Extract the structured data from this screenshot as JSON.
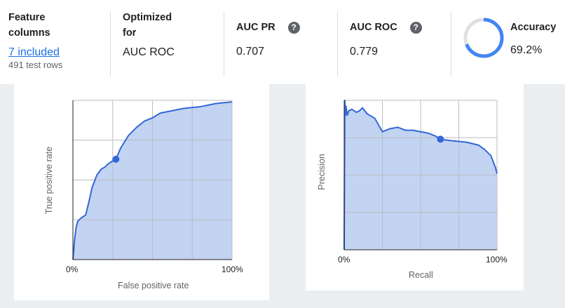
{
  "metrics": {
    "feature": {
      "label_line1": "Feature",
      "label_line2": "columns",
      "link": "7 included",
      "sub": "491 test rows"
    },
    "optimized": {
      "label_line1": "Optimized",
      "label_line2": "for",
      "value": "AUC ROC"
    },
    "auc_pr": {
      "label": "AUC PR",
      "value": "0.707"
    },
    "auc_roc": {
      "label": "AUC ROC",
      "value": "0.779"
    },
    "accuracy": {
      "label": "Accuracy",
      "value": "69.2%",
      "fraction": 0.692
    }
  },
  "roc_chart": {
    "xlabel": "False positive rate",
    "ylabel": "True positive rate",
    "xticks": [
      "0%",
      "100%"
    ]
  },
  "pr_chart": {
    "xlabel": "Recall",
    "ylabel": "Precision",
    "xticks": [
      "0%",
      "100%"
    ]
  },
  "chart_data": [
    {
      "type": "area",
      "xlabel": "False positive rate",
      "ylabel": "True positive rate",
      "xlim": [
        0,
        1
      ],
      "ylim": [
        0,
        1
      ],
      "grid": true,
      "x": [
        0,
        0.005,
        0.01,
        0.02,
        0.03,
        0.05,
        0.08,
        0.1,
        0.12,
        0.15,
        0.18,
        0.2,
        0.22,
        0.25,
        0.27,
        0.3,
        0.35,
        0.4,
        0.45,
        0.5,
        0.55,
        0.6,
        0.7,
        0.8,
        0.9,
        1.0
      ],
      "y": [
        0,
        0.05,
        0.12,
        0.2,
        0.24,
        0.26,
        0.28,
        0.36,
        0.45,
        0.53,
        0.57,
        0.58,
        0.6,
        0.62,
        0.63,
        0.7,
        0.78,
        0.83,
        0.87,
        0.89,
        0.92,
        0.93,
        0.95,
        0.96,
        0.98,
        0.99
      ],
      "highlight": {
        "x": 0.27,
        "y": 0.63
      },
      "xticks": [
        "0%",
        "100%"
      ]
    },
    {
      "type": "area",
      "xlabel": "Recall",
      "ylabel": "Precision",
      "xlim": [
        0,
        1
      ],
      "ylim": [
        0,
        1
      ],
      "grid": true,
      "x": [
        0,
        0.004,
        0.008,
        0.012,
        0.02,
        0.03,
        0.05,
        0.08,
        0.1,
        0.12,
        0.15,
        0.2,
        0.25,
        0.3,
        0.35,
        0.4,
        0.45,
        0.5,
        0.55,
        0.6,
        0.63,
        0.7,
        0.8,
        0.88,
        0.92,
        0.96,
        0.99,
        1.0
      ],
      "y": [
        0,
        1.0,
        0.9,
        0.96,
        0.9,
        0.93,
        0.94,
        0.92,
        0.93,
        0.95,
        0.91,
        0.88,
        0.79,
        0.81,
        0.82,
        0.8,
        0.8,
        0.79,
        0.78,
        0.76,
        0.74,
        0.73,
        0.72,
        0.7,
        0.67,
        0.63,
        0.55,
        0.51
      ],
      "highlight": {
        "x": 0.63,
        "y": 0.74
      },
      "xticks": [
        "0%",
        "100%"
      ]
    }
  ],
  "colors": {
    "line": "#3367d6",
    "fill": "#c3d3f2",
    "grid": "#b9bec4",
    "ring": "#4285f4",
    "ring_bg": "#e0e0e0"
  }
}
